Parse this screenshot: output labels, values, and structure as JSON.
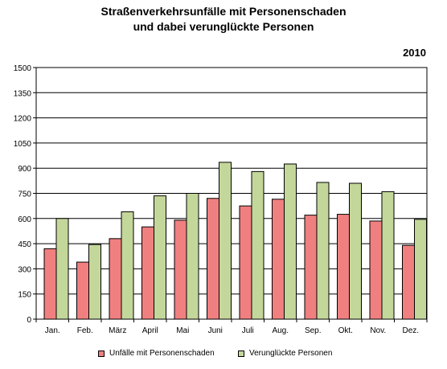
{
  "chart_data": {
    "type": "bar",
    "title": "Straßenverkehrsunfälle mit Personenschaden",
    "subtitle": "und dabei verunglückte Personen",
    "annotation": "2010",
    "categories": [
      "Jan.",
      "Feb.",
      "März",
      "April",
      "Mai",
      "Juni",
      "Juli",
      "Aug.",
      "Sep.",
      "Okt.",
      "Nov.",
      "Dez."
    ],
    "series": [
      {
        "name": "Unfälle mit Personenschaden",
        "color": "#f08080",
        "values": [
          420,
          340,
          480,
          550,
          590,
          720,
          675,
          715,
          620,
          625,
          585,
          440
        ]
      },
      {
        "name": "Verunglückte Personen",
        "color": "#c4d79b",
        "values": [
          600,
          445,
          640,
          735,
          750,
          935,
          880,
          925,
          815,
          810,
          760,
          595
        ]
      }
    ],
    "yticks": [
      "0",
      "150",
      "300",
      "450",
      "600",
      "750",
      "900",
      "1050",
      "1200",
      "1350",
      "1500"
    ],
    "ylim": [
      0,
      1500
    ],
    "grid": true,
    "legend_position": "bottom"
  }
}
